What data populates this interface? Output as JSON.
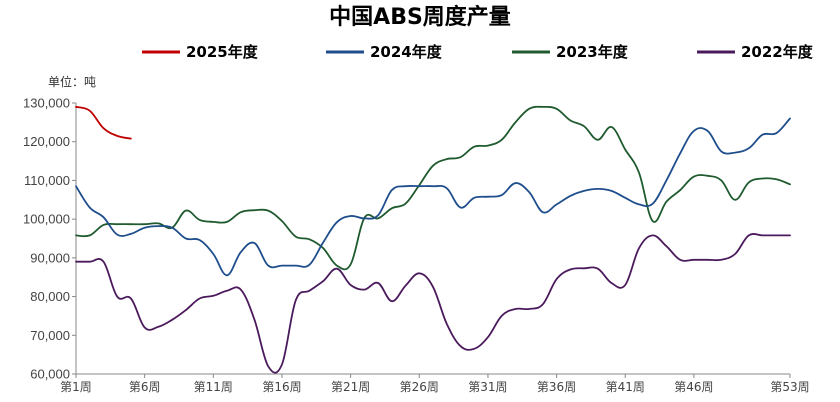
{
  "chart_data": {
    "type": "line",
    "title": "中国ABS周度产量",
    "unit_label": "单位：吨",
    "ylim": [
      60000,
      130000
    ],
    "y_ticks": [
      "60,000",
      "70,000",
      "80,000",
      "90,000",
      "100,000",
      "110,000",
      "120,000",
      "130,000"
    ],
    "y_tick_values": [
      60000,
      70000,
      80000,
      90000,
      100000,
      110000,
      120000,
      130000
    ],
    "x_tick_labels": [
      "第1周",
      "第6周",
      "第11周",
      "第16周",
      "第21周",
      "第26周",
      "第31周",
      "第36周",
      "第41周",
      "第46周",
      "第53周"
    ],
    "x_tick_weeks": [
      1,
      6,
      11,
      16,
      21,
      26,
      31,
      36,
      41,
      46,
      53
    ],
    "x_range": [
      1,
      53
    ],
    "legend_position": "top",
    "grid": false,
    "series": [
      {
        "name": "2025年度",
        "color": "#c00000",
        "weeks": [
          1,
          2,
          3,
          4,
          5
        ],
        "values": [
          129000,
          128000,
          123500,
          121500,
          120800
        ]
      },
      {
        "name": "2024年度",
        "color": "#1f4e8c",
        "weeks": [
          1,
          2,
          3,
          4,
          5,
          6,
          7,
          8,
          9,
          10,
          11,
          12,
          13,
          14,
          15,
          16,
          17,
          18,
          19,
          20,
          21,
          22,
          23,
          24,
          25,
          26,
          27,
          28,
          29,
          30,
          31,
          32,
          33,
          34,
          35,
          36,
          37,
          38,
          39,
          40,
          41,
          42,
          43,
          44,
          45,
          46,
          47,
          48,
          49,
          50,
          51,
          52,
          53
        ],
        "values": [
          108500,
          103000,
          100500,
          96000,
          96200,
          97800,
          98200,
          97800,
          95000,
          94600,
          91000,
          85500,
          91500,
          93800,
          88000,
          88000,
          88000,
          88200,
          94000,
          99200,
          100800,
          100200,
          101000,
          107500,
          108500,
          108500,
          108500,
          108000,
          103000,
          105500,
          105800,
          106200,
          109300,
          107000,
          101800,
          103800,
          106000,
          107300,
          107800,
          107300,
          105500,
          103800,
          104000,
          110000,
          117000,
          122800,
          122800,
          117500,
          117200,
          118300,
          121800,
          122200,
          126000
        ]
      },
      {
        "name": "2023年度",
        "color": "#1f5b2e",
        "weeks": [
          1,
          2,
          3,
          4,
          5,
          6,
          7,
          8,
          9,
          10,
          11,
          12,
          13,
          14,
          15,
          16,
          17,
          18,
          19,
          20,
          21,
          22,
          23,
          24,
          25,
          26,
          27,
          28,
          29,
          30,
          31,
          32,
          33,
          34,
          35,
          36,
          37,
          38,
          39,
          40,
          41,
          42,
          43,
          44,
          45,
          46,
          47,
          48,
          49,
          50,
          51,
          52,
          53
        ],
        "values": [
          95800,
          95800,
          98500,
          98700,
          98700,
          98700,
          98900,
          97800,
          102200,
          99800,
          99300,
          99300,
          101800,
          102300,
          102200,
          99500,
          95500,
          94800,
          92500,
          88000,
          88300,
          100300,
          100200,
          102800,
          104000,
          108800,
          113800,
          115500,
          116000,
          118700,
          119000,
          120500,
          125000,
          128500,
          129000,
          128500,
          125500,
          124000,
          120500,
          123800,
          118000,
          112000,
          99500,
          104500,
          107500,
          111000,
          111200,
          110000,
          105000,
          109500,
          110500,
          110300,
          109000
        ]
      },
      {
        "name": "2022年度",
        "color": "#4b1a5c",
        "weeks": [
          1,
          2,
          3,
          4,
          5,
          6,
          7,
          8,
          9,
          10,
          11,
          12,
          13,
          14,
          15,
          16,
          17,
          18,
          19,
          20,
          21,
          22,
          23,
          24,
          25,
          26,
          27,
          28,
          29,
          30,
          31,
          32,
          33,
          34,
          35,
          36,
          37,
          38,
          39,
          40,
          41,
          42,
          43,
          44,
          45,
          46,
          47,
          48,
          49,
          50,
          51,
          52,
          53
        ],
        "values": [
          89000,
          89000,
          89000,
          80000,
          79500,
          72000,
          72200,
          74000,
          76500,
          79500,
          80200,
          81500,
          81800,
          74000,
          62000,
          62500,
          79000,
          81500,
          84000,
          87200,
          83000,
          81800,
          83500,
          78800,
          82800,
          86000,
          82500,
          73000,
          67200,
          66500,
          69500,
          75000,
          76800,
          76800,
          78000,
          84500,
          87000,
          87300,
          87200,
          83500,
          83000,
          92500,
          95800,
          93000,
          89500,
          89500,
          89500,
          89500,
          91000,
          95800,
          95800,
          95800,
          95800
        ]
      }
    ]
  }
}
